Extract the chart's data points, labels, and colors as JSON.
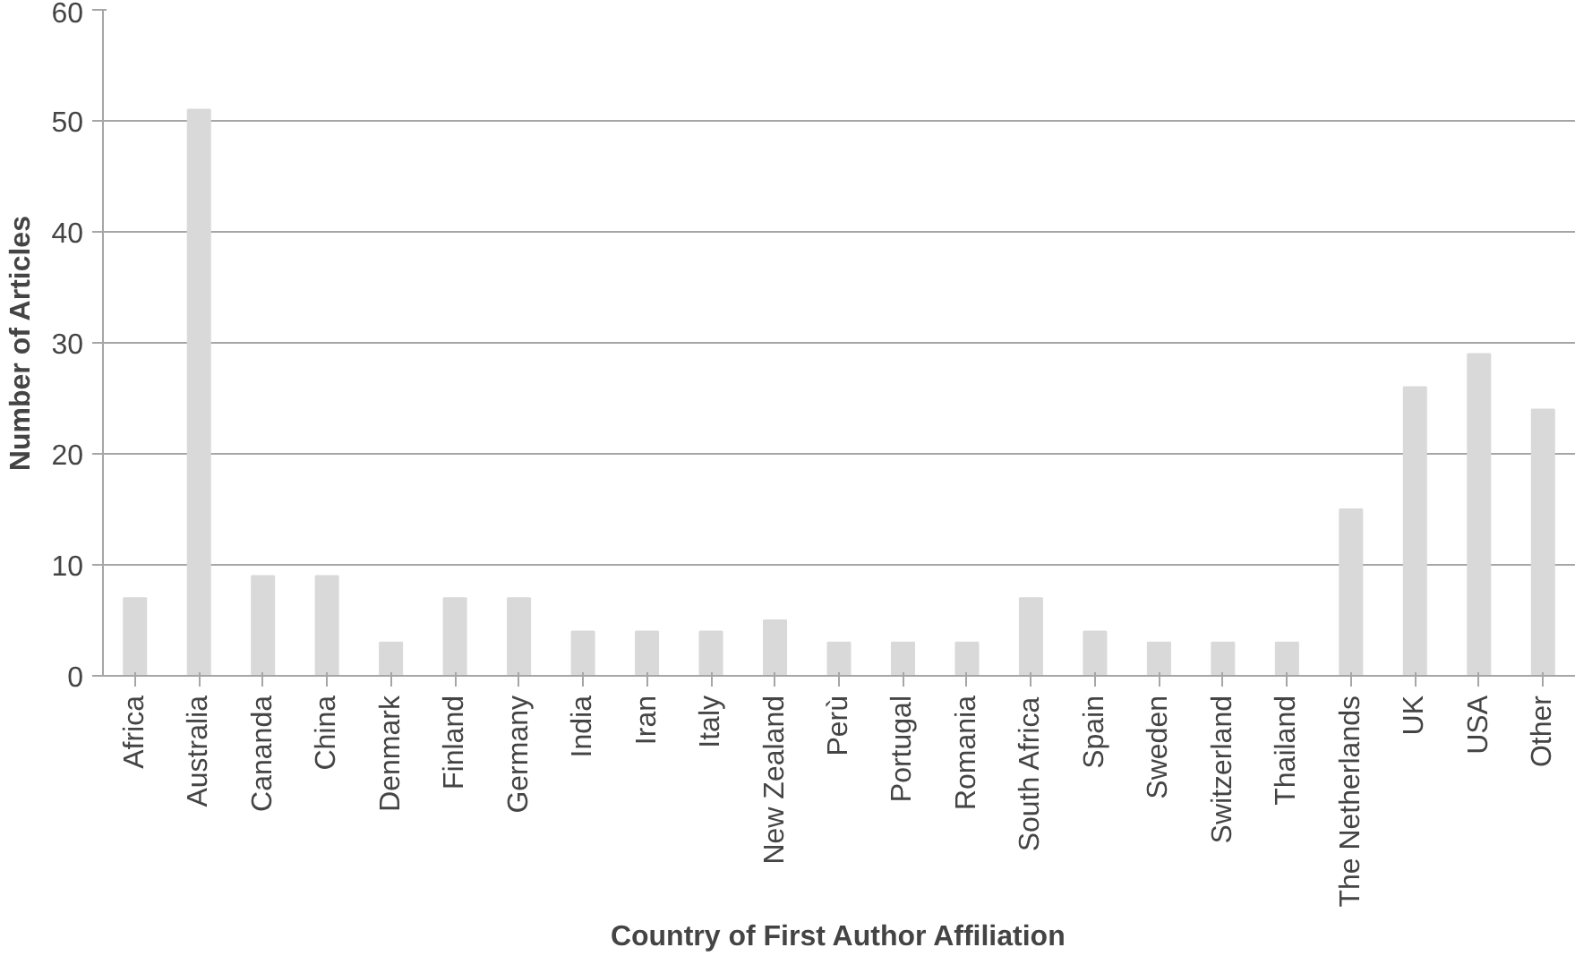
{
  "chart_data": {
    "type": "bar",
    "xlabel": "Country of First Author Affiliation",
    "ylabel": "Number of Articles",
    "categories": [
      "Africa",
      "Australia",
      "Cananda",
      "China",
      "Denmark",
      "Finland",
      "Germany",
      "India",
      "Iran",
      "Italy",
      "New Zealand",
      "Perù",
      "Portugal",
      "Romania",
      "South Africa",
      "Spain",
      "Sweden",
      "Switzerland",
      "Thailand",
      "The Netherlands",
      "UK",
      "USA",
      "Other"
    ],
    "values": [
      7,
      51,
      9,
      9,
      3,
      7,
      7,
      4,
      4,
      4,
      5,
      3,
      3,
      3,
      7,
      4,
      3,
      3,
      3,
      15,
      26,
      29,
      24
    ],
    "color": "#d9d9d9",
    "ylim": [
      0,
      60
    ],
    "yticks": [
      0,
      10,
      20,
      30,
      40,
      50,
      60
    ],
    "grid": "y"
  }
}
